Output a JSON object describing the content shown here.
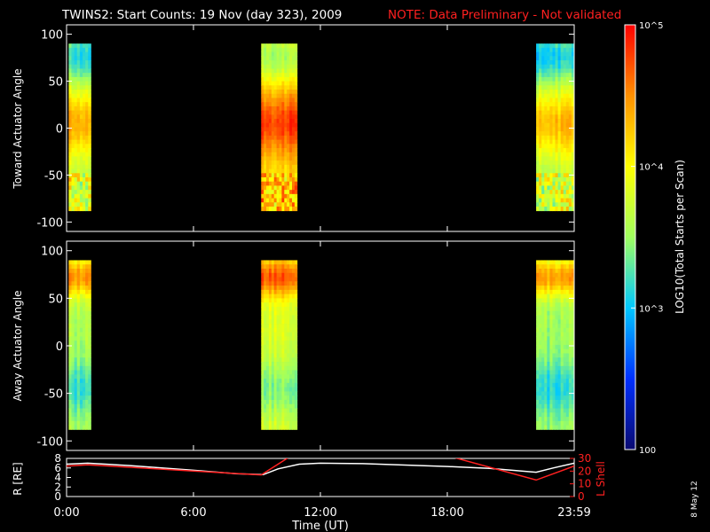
{
  "header": {
    "title": "TWINS2: Start Counts: 19 Nov (day 323), 2009",
    "note": "NOTE: Data Preliminary - Not validated"
  },
  "footer": {
    "date_stamp": "8 May 12"
  },
  "colorbar": {
    "label": "LOG10(Total Starts per Scan)",
    "tick_labels": [
      "10^5",
      "10^4",
      "10^3",
      "100"
    ],
    "log_range": [
      2,
      5
    ],
    "colormap": [
      "#0a0a70",
      "#0030ff",
      "#00c8ff",
      "#a0ff60",
      "#ffff00",
      "#ff9000",
      "#ff0000"
    ]
  },
  "chart_data": [
    {
      "type": "heatmap",
      "panel": "toward",
      "ylabel": "Toward Actuator Angle",
      "yticks": [
        "100",
        "50",
        "0",
        "-50",
        "-100"
      ],
      "ylim": [
        -110,
        110
      ],
      "xlim_hours": [
        0,
        24
      ],
      "data_angle_range": [
        -88,
        90
      ],
      "segments": [
        {
          "start": 0.1,
          "end": 1.15,
          "base_log": 3.7
        },
        {
          "start": 9.2,
          "end": 10.9,
          "base_log": 4.1
        },
        {
          "start": 22.2,
          "end": 24.0,
          "base_log": 3.6
        }
      ]
    },
    {
      "type": "heatmap",
      "panel": "away",
      "ylabel": "Away Actuator Angle",
      "yticks": [
        "100",
        "50",
        "0",
        "-50",
        "-100"
      ],
      "ylim": [
        -110,
        110
      ],
      "xlim_hours": [
        0,
        24
      ],
      "data_angle_range": [
        -88,
        90
      ],
      "segments": [
        {
          "start": 0.1,
          "end": 1.15,
          "base_log": 3.6
        },
        {
          "start": 9.2,
          "end": 10.9,
          "base_log": 3.8
        },
        {
          "start": 22.2,
          "end": 24.0,
          "base_log": 3.5
        }
      ]
    },
    {
      "type": "line",
      "panel": "orbit",
      "ylabel_left": "R [RE]",
      "ylabel_right": "L Shell",
      "xlabel": "Time (UT)",
      "xticks": [
        "0:00",
        "6:00",
        "12:00",
        "18:00",
        "23:59"
      ],
      "xtick_hours": [
        0,
        6,
        12,
        18,
        24
      ],
      "yticks_left": [
        "0",
        "2",
        "4",
        "6",
        "8"
      ],
      "ylim_left": [
        0,
        8
      ],
      "yticks_right": [
        "0",
        "10",
        "20",
        "30"
      ],
      "ylim_right": [
        0,
        30
      ],
      "series": [
        {
          "name": "R",
          "color": "#ffffff",
          "x": [
            0,
            1,
            3,
            6,
            8,
            9.3,
            10,
            11,
            12,
            14,
            16,
            18,
            20,
            22.2,
            23,
            24
          ],
          "y": [
            6.8,
            7.0,
            6.5,
            5.5,
            4.8,
            4.6,
            5.8,
            6.8,
            7.0,
            6.9,
            6.6,
            6.3,
            5.9,
            5.1,
            6.0,
            7.0
          ]
        },
        {
          "name": "L Shell",
          "color": "#ff2020",
          "x": [
            0,
            1,
            3,
            6,
            9.2,
            10.8,
            17.6,
            22.2,
            24
          ],
          "y": [
            24,
            25,
            23,
            20,
            17,
            34,
            34,
            13,
            24
          ]
        }
      ]
    }
  ]
}
